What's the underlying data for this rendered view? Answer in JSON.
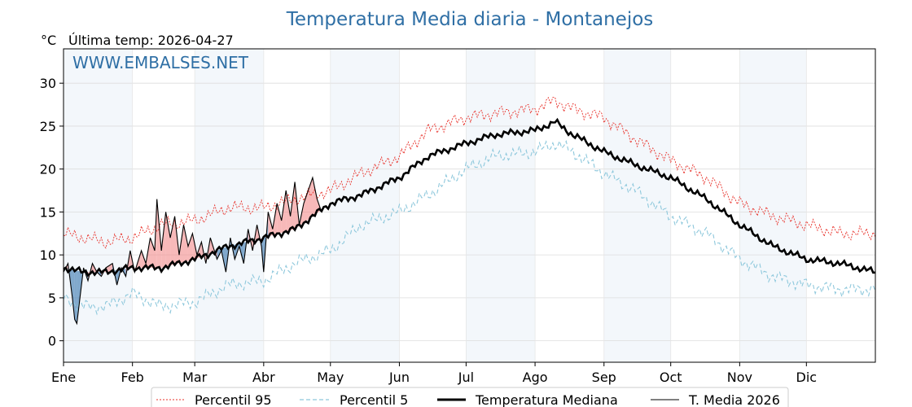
{
  "chart_data": {
    "type": "line",
    "title": "Temperatura Media diaria - Montanejos",
    "unit_label": "°C",
    "last_temp_label": "Última temp: 2026-04-27",
    "watermark": "WWW.EMBALSES.NET",
    "ylim": [
      -2.5,
      34
    ],
    "y_ticks": [
      0,
      5,
      10,
      15,
      20,
      25,
      30
    ],
    "xlim": [
      1,
      366
    ],
    "month_labels": [
      "Ene",
      "Feb",
      "Mar",
      "Abr",
      "May",
      "Jun",
      "Jul",
      "Ago",
      "Sep",
      "Oct",
      "Nov",
      "Dic"
    ],
    "month_starts": [
      1,
      32,
      60,
      91,
      121,
      152,
      182,
      213,
      244,
      274,
      305,
      335
    ],
    "grid": true,
    "legend_position": "bottom",
    "series": [
      {
        "name": "Percentil 95",
        "color": "#e8312a",
        "style": "dotted",
        "x": [
          1,
          10,
          20,
          32,
          45,
          60,
          75,
          91,
          105,
          121,
          135,
          152,
          165,
          182,
          195,
          213,
          222,
          230,
          244,
          258,
          274,
          290,
          305,
          320,
          335,
          350,
          366
        ],
        "values": [
          12.5,
          12.0,
          11.5,
          12.0,
          13.5,
          14.0,
          15.5,
          15.5,
          16.5,
          17.5,
          19.5,
          21.5,
          24.5,
          26.0,
          26.5,
          27.0,
          28.0,
          27.0,
          26.0,
          23.5,
          21.0,
          19.0,
          16.0,
          14.5,
          13.5,
          12.5,
          12.5
        ]
      },
      {
        "name": "Percentil 5",
        "color": "#8ec8dc",
        "style": "dashed",
        "x": [
          1,
          10,
          20,
          32,
          45,
          60,
          75,
          91,
          105,
          121,
          135,
          152,
          165,
          182,
          195,
          213,
          222,
          230,
          244,
          258,
          274,
          290,
          305,
          320,
          335,
          350,
          366
        ],
        "values": [
          5.0,
          4.0,
          4.0,
          5.5,
          4.0,
          4.5,
          6.5,
          7.0,
          9.0,
          10.5,
          13.5,
          15.0,
          17.0,
          20.0,
          21.5,
          22.0,
          23.0,
          22.0,
          19.5,
          17.5,
          14.5,
          12.5,
          9.5,
          7.5,
          6.5,
          6.0,
          6.0
        ]
      },
      {
        "name": "Temperatura Mediana",
        "color": "#000000",
        "style": "solid-thick",
        "x": [
          1,
          10,
          20,
          32,
          45,
          60,
          75,
          91,
          105,
          121,
          135,
          152,
          165,
          182,
          195,
          213,
          222,
          230,
          244,
          258,
          274,
          290,
          305,
          320,
          335,
          350,
          366
        ],
        "values": [
          8.5,
          8.0,
          8.0,
          8.5,
          8.5,
          9.5,
          11.0,
          12.0,
          13.0,
          16.0,
          17.0,
          19.0,
          21.5,
          23.0,
          24.0,
          24.5,
          25.5,
          24.0,
          22.0,
          20.5,
          19.0,
          16.5,
          13.5,
          11.0,
          9.5,
          9.0,
          8.0
        ]
      },
      {
        "name": "T. Media 2026",
        "color": "#000000",
        "style": "solid-thin",
        "x": [
          1,
          3,
          5,
          6,
          7,
          10,
          12,
          14,
          16,
          18,
          20,
          23,
          25,
          27,
          29,
          31,
          33,
          36,
          38,
          40,
          42,
          43,
          45,
          47,
          49,
          51,
          53,
          55,
          57,
          59,
          61,
          63,
          65,
          67,
          70,
          72,
          74,
          76,
          78,
          80,
          82,
          84,
          86,
          88,
          90,
          91,
          93,
          95,
          97,
          99,
          101,
          103,
          105,
          107,
          109,
          111,
          113,
          115,
          117
        ],
        "values": [
          8.0,
          9.0,
          5.0,
          2.5,
          2.0,
          8.5,
          7.0,
          9.0,
          8.0,
          7.5,
          8.5,
          9.0,
          6.5,
          8.5,
          7.5,
          10.5,
          8.0,
          10.5,
          9.0,
          12.0,
          10.5,
          16.5,
          10.5,
          15.0,
          12.0,
          14.5,
          10.0,
          13.5,
          11.0,
          12.5,
          10.0,
          11.5,
          9.0,
          12.0,
          9.5,
          10.5,
          8.0,
          12.0,
          9.5,
          11.0,
          9.0,
          13.0,
          10.5,
          13.5,
          11.0,
          8.0,
          15.0,
          13.0,
          16.0,
          14.0,
          17.5,
          14.5,
          18.5,
          13.5,
          16.0,
          17.5,
          19.0,
          16.5,
          15.0
        ]
      }
    ]
  }
}
